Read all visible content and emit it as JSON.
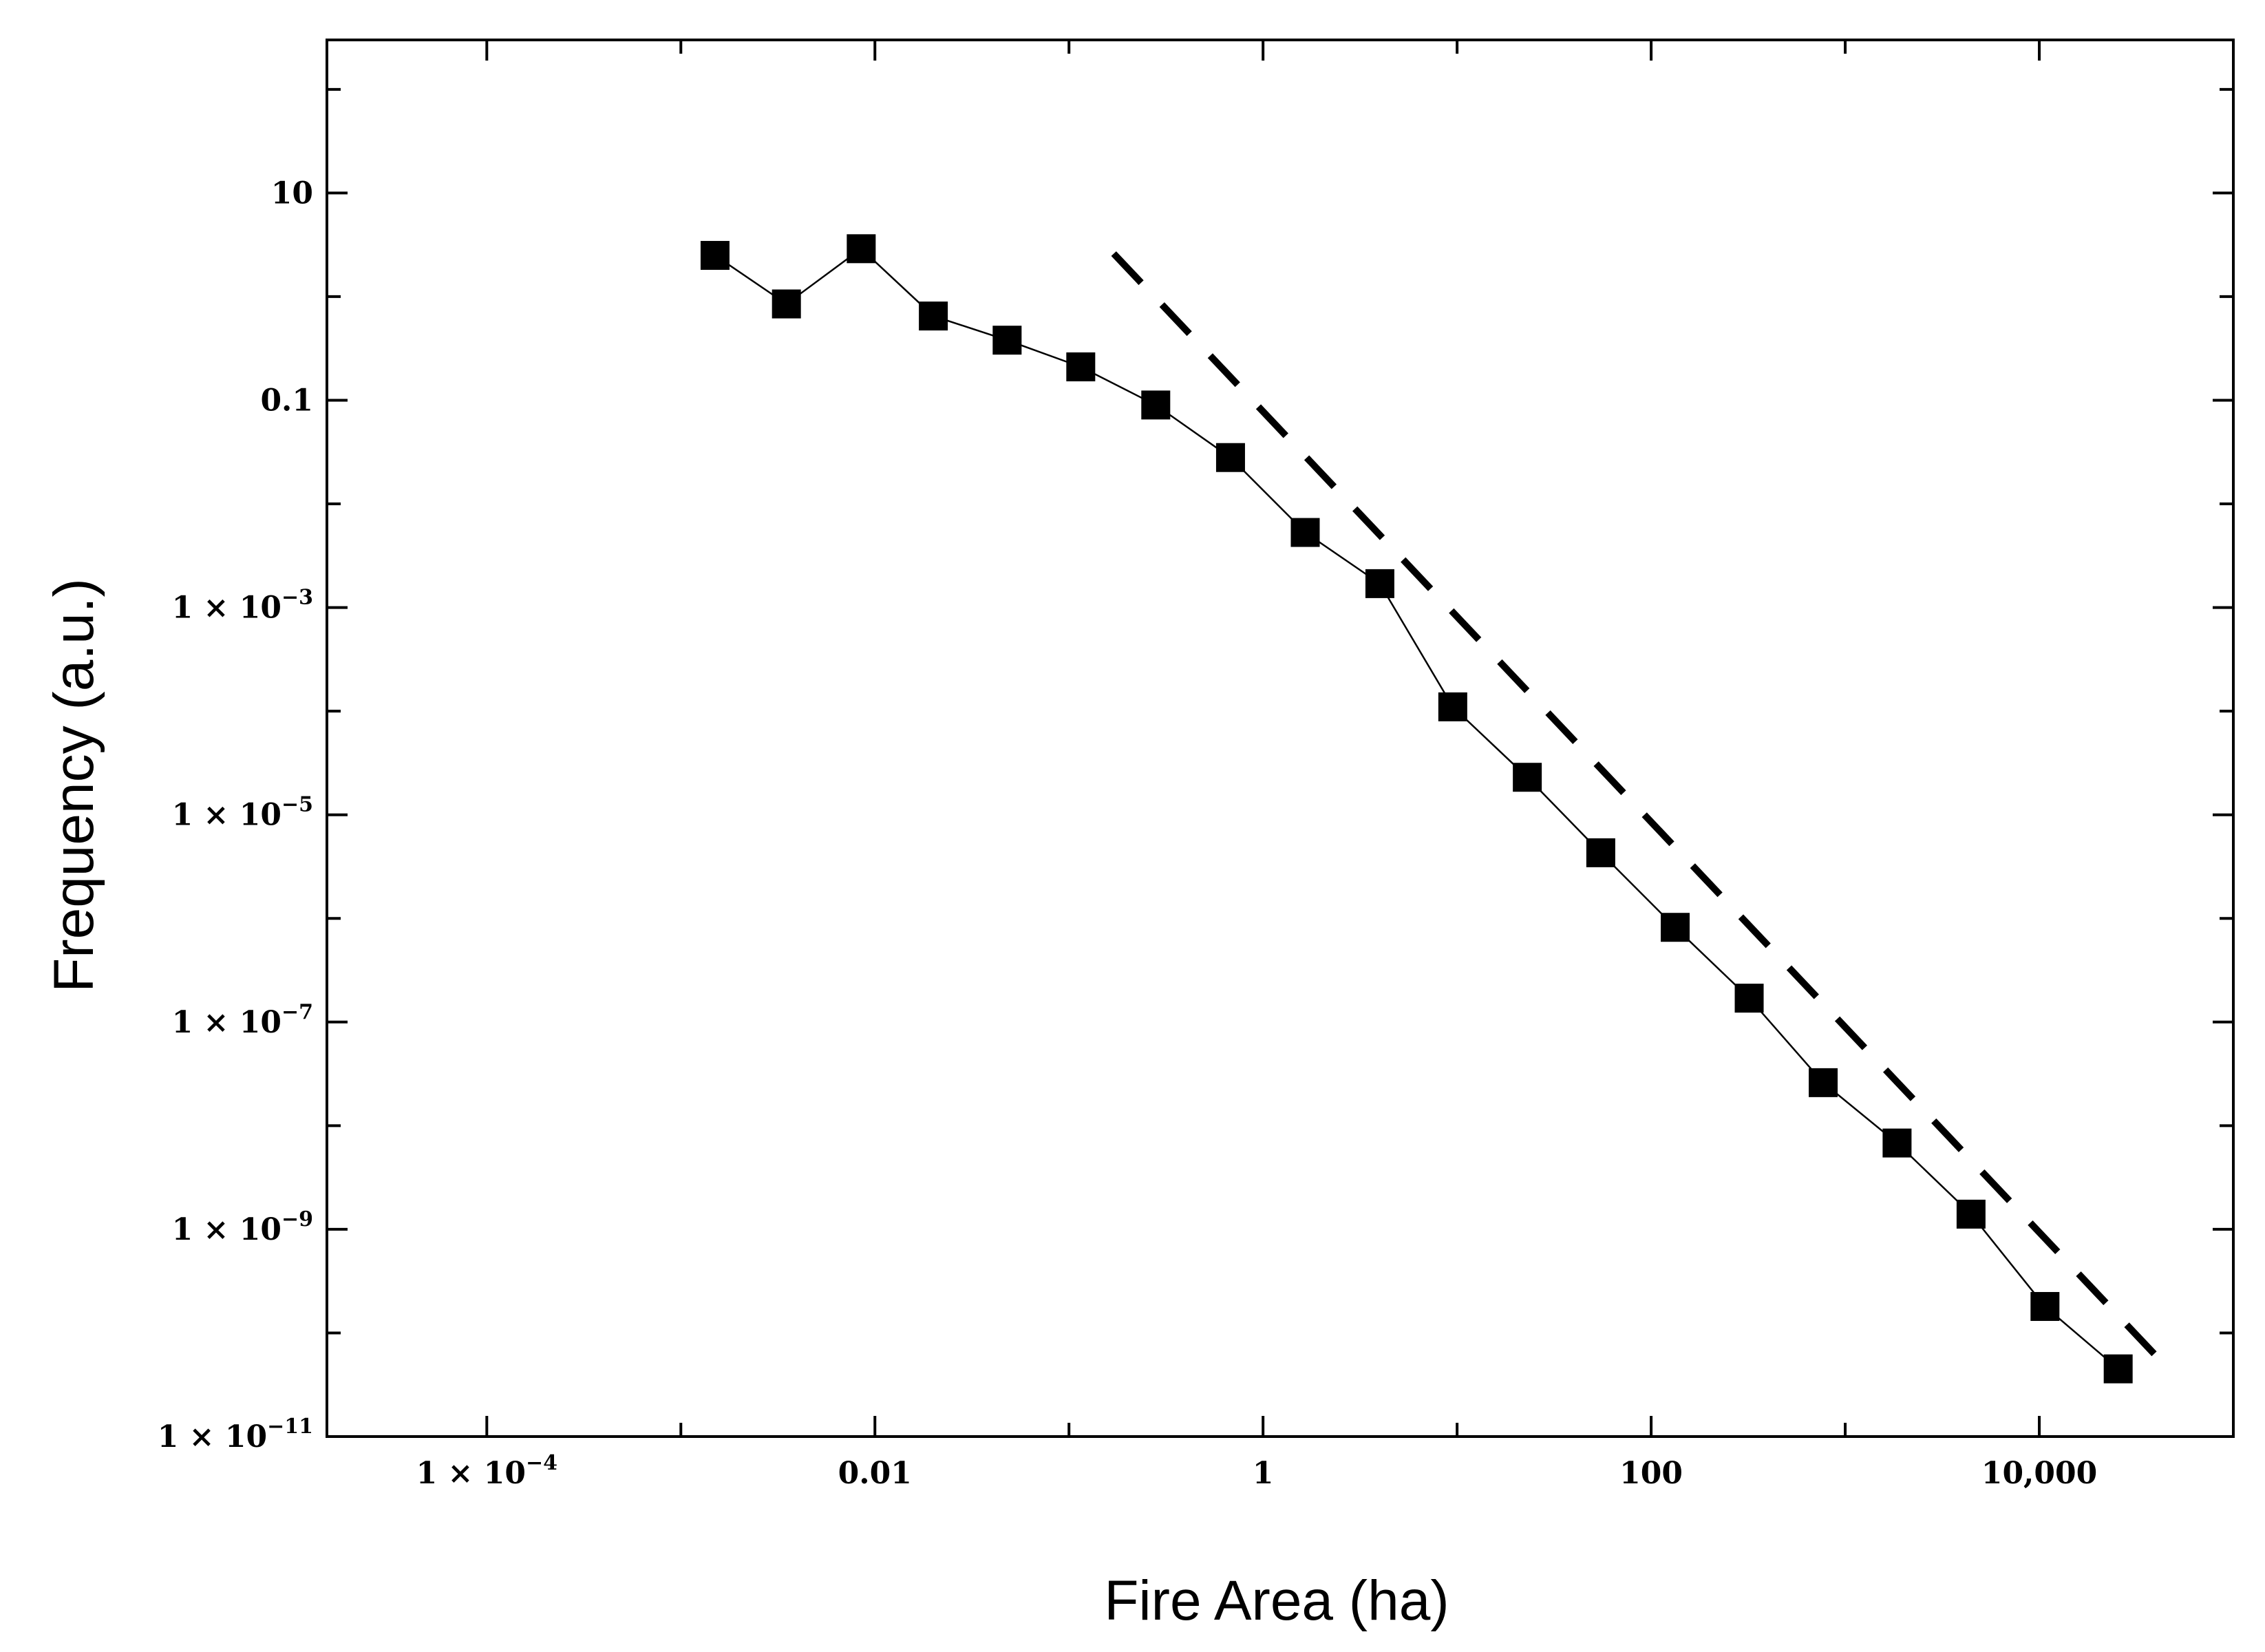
{
  "chart_data": {
    "type": "scatter",
    "title": "",
    "xlabel": "Fire Area (ha)",
    "ylabel": "Frequency (a.u.)",
    "x_scale": "log",
    "y_scale": "log",
    "xlim": [
      1.5e-05,
      100000
    ],
    "ylim": [
      1e-11,
      300
    ],
    "x_ticks": [
      {
        "value": 0.0001,
        "label": "1 × 10",
        "exp": "−4"
      },
      {
        "value": 0.01,
        "label": "0.01",
        "exp": ""
      },
      {
        "value": 1,
        "label": "1",
        "exp": ""
      },
      {
        "value": 100,
        "label": "100",
        "exp": ""
      },
      {
        "value": 10000,
        "label": "10,000",
        "exp": ""
      }
    ],
    "y_ticks": [
      {
        "value": 10,
        "label": "10",
        "exp": ""
      },
      {
        "value": 0.1,
        "label": "0.1",
        "exp": ""
      },
      {
        "value": 0.001,
        "label": "1 × 10",
        "exp": "−3"
      },
      {
        "value": 1e-05,
        "label": "1 × 10",
        "exp": "−5"
      },
      {
        "value": 1e-07,
        "label": "1 × 10",
        "exp": "−7"
      },
      {
        "value": 1e-09,
        "label": "1 × 10",
        "exp": "−9"
      },
      {
        "value": 1e-11,
        "label": "1 × 10",
        "exp": "−11"
      }
    ],
    "grid": false,
    "legend": "none",
    "series": [
      {
        "style": "markers-with-thin-line",
        "marker": "filled-square",
        "color": "#000000",
        "points": [
          {
            "x": 0.0015,
            "y": 2.5
          },
          {
            "x": 0.0035,
            "y": 0.85
          },
          {
            "x": 0.0085,
            "y": 2.9
          },
          {
            "x": 0.02,
            "y": 0.65
          },
          {
            "x": 0.048,
            "y": 0.38
          },
          {
            "x": 0.115,
            "y": 0.21
          },
          {
            "x": 0.28,
            "y": 0.09
          },
          {
            "x": 0.68,
            "y": 0.028
          },
          {
            "x": 1.65,
            "y": 0.0053
          },
          {
            "x": 4,
            "y": 0.0017
          },
          {
            "x": 9.5,
            "y": 0.00011
          },
          {
            "x": 23,
            "y": 2.3e-05
          },
          {
            "x": 55,
            "y": 4.3e-06
          },
          {
            "x": 133,
            "y": 8.2e-07
          },
          {
            "x": 320,
            "y": 1.7e-07
          },
          {
            "x": 770,
            "y": 2.6e-08
          },
          {
            "x": 1850,
            "y": 6.8e-09
          },
          {
            "x": 4450,
            "y": 1.4e-09
          },
          {
            "x": 10700,
            "y": 1.8e-10
          },
          {
            "x": 25500,
            "y": 4.5e-11
          }
        ]
      },
      {
        "style": "dashed-line",
        "color": "#000000",
        "points": [
          {
            "x": 0.17,
            "y": 2.6
          },
          {
            "x": 40000,
            "y": 6e-11
          }
        ]
      }
    ]
  }
}
